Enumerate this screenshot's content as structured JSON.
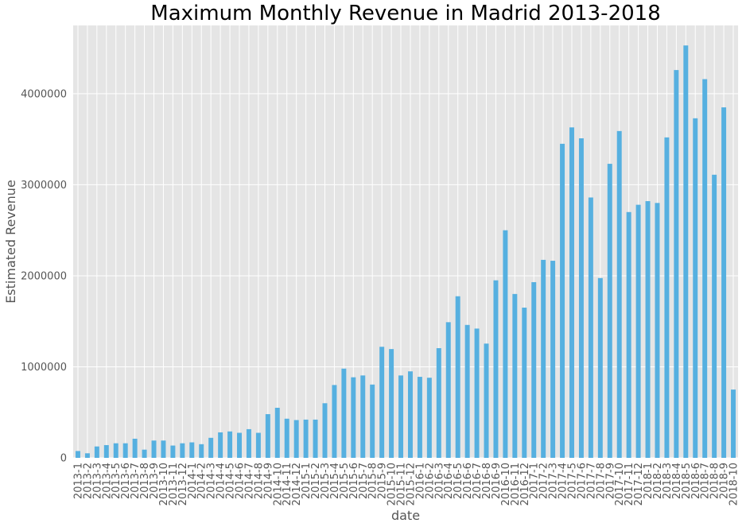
{
  "colors": {
    "bar": "#56b0e0",
    "plot_bg": "#e5e5e5",
    "grid": "#ffffff"
  },
  "chart_data": {
    "type": "bar",
    "title": "Maximum Monthly Revenue in Madrid 2013-2018",
    "xlabel": "date",
    "ylabel": "Estimated Revenue",
    "ylim": [
      0,
      4750000
    ],
    "yticks": [
      0,
      1000000,
      2000000,
      3000000,
      4000000
    ],
    "ytick_labels": [
      "0",
      "1000000",
      "2000000",
      "3000000",
      "4000000"
    ],
    "grid": true,
    "categories": [
      "2013-1",
      "2013-2",
      "2013-3",
      "2013-4",
      "2013-5",
      "2013-6",
      "2013-7",
      "2013-8",
      "2013-9",
      "2013-10",
      "2013-11",
      "2013-12",
      "2014-1",
      "2014-2",
      "2014-3",
      "2014-4",
      "2014-5",
      "2014-6",
      "2014-7",
      "2014-8",
      "2014-9",
      "2014-10",
      "2014-11",
      "2014-12",
      "2015-1",
      "2015-2",
      "2015-3",
      "2015-4",
      "2015-5",
      "2015-6",
      "2015-7",
      "2015-8",
      "2015-9",
      "2015-10",
      "2015-11",
      "2015-12",
      "2016-1",
      "2016-2",
      "2016-3",
      "2016-4",
      "2016-5",
      "2016-6",
      "2016-7",
      "2016-8",
      "2016-9",
      "2016-10",
      "2016-11",
      "2016-12",
      "2017-1",
      "2017-2",
      "2017-3",
      "2017-4",
      "2017-5",
      "2017-6",
      "2017-7",
      "2017-8",
      "2017-9",
      "2017-10",
      "2017-11",
      "2017-12",
      "2018-1",
      "2018-2",
      "2018-3",
      "2018-4",
      "2018-5",
      "2018-6",
      "2018-7",
      "2018-8",
      "2018-9",
      "2018-10"
    ],
    "values": [
      75000,
      50000,
      125000,
      140000,
      160000,
      160000,
      210000,
      90000,
      190000,
      190000,
      135000,
      160000,
      170000,
      150000,
      220000,
      280000,
      290000,
      275000,
      315000,
      275000,
      480000,
      550000,
      430000,
      415000,
      420000,
      420000,
      600000,
      800000,
      980000,
      885000,
      905000,
      805000,
      1220000,
      1195000,
      905000,
      950000,
      890000,
      880000,
      1205000,
      1490000,
      1775000,
      1460000,
      1420000,
      1255000,
      1950000,
      2500000,
      1800000,
      1650000,
      1930000,
      2175000,
      2165000,
      3450000,
      3630000,
      3510000,
      2860000,
      1975000,
      3230000,
      3590000,
      2700000,
      2780000,
      2820000,
      2800000,
      3520000,
      4260000,
      4530000,
      3730000,
      4160000,
      3110000,
      3850000,
      750000
    ]
  }
}
